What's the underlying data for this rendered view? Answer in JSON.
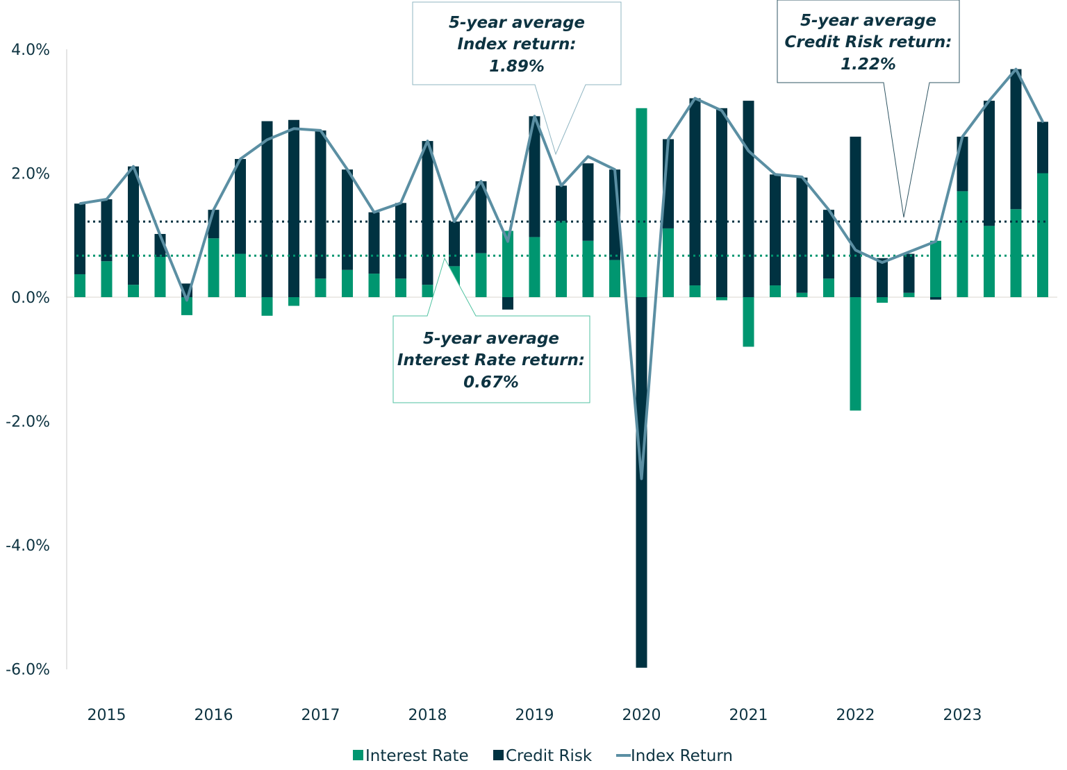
{
  "chart_data": {
    "type": "bar",
    "stacked": true,
    "title": "",
    "xlabel": "",
    "ylabel": "",
    "ylim": [
      -6.0,
      4.0
    ],
    "yticks": [
      "4.0%",
      "2.0%",
      "0.0%",
      "-2.0%",
      "-4.0%",
      "-6.0%"
    ],
    "ytick_values": [
      4,
      2,
      0,
      -2,
      -4,
      -6
    ],
    "xtick_labels": [
      "2015",
      "2016",
      "2017",
      "2018",
      "2019",
      "2020",
      "2021",
      "2022",
      "2023"
    ],
    "categories": [
      "2015 Q1",
      "2015 Q2",
      "2015 Q3",
      "2015 Q4",
      "2016 Q1",
      "2016 Q2",
      "2016 Q3",
      "2016 Q4",
      "2017 Q1",
      "2017 Q2",
      "2017 Q3",
      "2017 Q4",
      "2018 Q1",
      "2018 Q2",
      "2018 Q3",
      "2018 Q4",
      "2019 Q1",
      "2019 Q2",
      "2019 Q3",
      "2019 Q4",
      "2020 Q1",
      "2020 Q2",
      "2020 Q3",
      "2020 Q4",
      "2021 Q1",
      "2021 Q2",
      "2021 Q3",
      "2021 Q4",
      "2022 Q1",
      "2022 Q2",
      "2022 Q3",
      "2022 Q4",
      "2023 Q1",
      "2023 Q2",
      "2023 Q3",
      "2023 Q4",
      "2024 Q1"
    ],
    "grid": false,
    "legend_position": "bottom",
    "series": [
      {
        "name": "Interest Rate",
        "type": "bar",
        "color": "#009670",
        "values": [
          0.37,
          0.58,
          0.2,
          0.65,
          -0.29,
          0.95,
          0.7,
          -0.3,
          -0.14,
          0.3,
          0.44,
          0.38,
          0.3,
          0.2,
          0.5,
          0.71,
          1.07,
          0.97,
          1.23,
          0.91,
          0.6,
          3.05,
          1.11,
          0.19,
          -0.05,
          -0.8,
          0.19,
          0.07,
          0.3,
          -1.83,
          -0.09,
          0.07,
          0.91,
          1.71,
          1.15,
          1.42,
          2.0
        ]
      },
      {
        "name": "Credit Risk",
        "type": "bar",
        "color": "#003241",
        "values": [
          1.14,
          1.0,
          1.91,
          0.37,
          0.22,
          0.46,
          1.53,
          2.84,
          2.86,
          2.39,
          1.62,
          0.99,
          1.22,
          2.32,
          0.72,
          1.16,
          -0.2,
          1.95,
          0.57,
          1.25,
          1.46,
          -5.98,
          1.44,
          3.02,
          3.05,
          3.17,
          1.79,
          1.86,
          1.11,
          2.59,
          0.63,
          0.63,
          -0.04,
          0.88,
          2.02,
          2.26,
          0.83
        ]
      },
      {
        "name": "Index Return",
        "type": "line",
        "color": "#5b8fa3",
        "values": [
          1.51,
          1.58,
          2.11,
          1.0,
          -0.05,
          1.41,
          2.23,
          2.54,
          2.72,
          2.69,
          2.06,
          1.37,
          1.52,
          2.52,
          1.22,
          1.87,
          0.9,
          2.92,
          1.8,
          2.27,
          2.06,
          -2.93,
          2.55,
          3.21,
          3.01,
          2.36,
          1.98,
          1.94,
          1.41,
          0.76,
          0.56,
          0.73,
          0.9,
          2.59,
          3.17,
          3.68,
          2.83
        ]
      }
    ],
    "reference_lines": [
      {
        "label": "5-year average Credit Risk return",
        "value": 1.22,
        "color": "#003241",
        "style": "dotted"
      },
      {
        "label": "5-year average Interest Rate return",
        "value": 0.67,
        "color": "#009670",
        "style": "dotted"
      }
    ],
    "annotations": [
      {
        "lines": [
          "5-year average",
          "Index return:",
          "1.89%"
        ]
      },
      {
        "lines": [
          "5-year average",
          "Credit Risk return:",
          "1.22%"
        ]
      },
      {
        "lines": [
          "5-year average",
          "Interest Rate return:",
          "0.67%"
        ]
      }
    ]
  }
}
